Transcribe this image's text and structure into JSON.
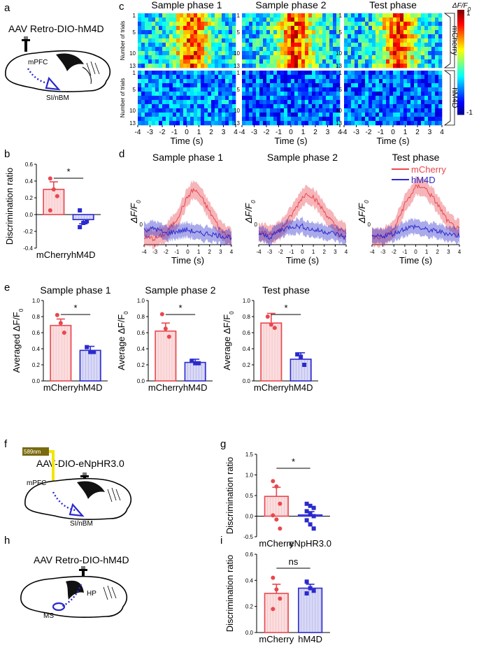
{
  "panels": {
    "a": "a",
    "b": "b",
    "c": "c",
    "d": "d",
    "e": "e",
    "f": "f",
    "g": "g",
    "h": "h",
    "i": "i"
  },
  "brains": {
    "a": {
      "title": "AAV Retro-DIO-hM4D",
      "label_top": "mPFC",
      "label_bottom": "SI/nBM"
    },
    "f": {
      "title": "AAV-DIO-eNpHR3.0",
      "laser": "589nm",
      "label_top": "mPFC",
      "label_bottom": "SI/nBM"
    },
    "h": {
      "title": "AAV Retro-DIO-hM4D",
      "label_top": "HP",
      "label_bottom": "MS"
    }
  },
  "colors": {
    "mcherry": "#e8474f",
    "hm4d": "#2a2acd",
    "laser": "#f2e600"
  },
  "chart_data": [
    {
      "id": "c",
      "type": "heatmap",
      "titles": [
        "Sample phase 1",
        "Sample phase 2",
        "Test phase"
      ],
      "groups": [
        "mCherry",
        "hM4D"
      ],
      "ylabel": "Number of trials",
      "yticks": [
        "1",
        "5",
        "10",
        "13"
      ],
      "xticks": [
        "-4",
        "-3",
        "-2",
        "-1",
        "0",
        "1",
        "2",
        "3",
        "4"
      ],
      "xlabel": "Time (s)",
      "colorbar": {
        "label": "ΔF/F0",
        "max": "1",
        "min": "-1"
      }
    },
    {
      "id": "d",
      "type": "line",
      "titles": [
        "Sample phase 1",
        "Sample phase 2",
        "Test phase"
      ],
      "xlabel": "Time (s)",
      "ylabel": "ΔF/F0",
      "xticks": [
        "-4",
        "-3",
        "-2",
        "-1",
        "0",
        "1",
        "2",
        "3",
        "4"
      ],
      "xlim": [
        -4,
        4
      ],
      "series": [
        {
          "name": "mCherry",
          "x": [
            -4,
            -3,
            -2,
            -1,
            0,
            0.5,
            1,
            2,
            3,
            4
          ],
          "panels": [
            [
              0.0,
              -0.02,
              0.05,
              0.25,
              0.55,
              0.65,
              0.6,
              0.35,
              0.1,
              0.0
            ],
            [
              0.05,
              0.05,
              0.1,
              0.3,
              0.55,
              0.6,
              0.55,
              0.35,
              0.15,
              0.05
            ],
            [
              0.0,
              0.0,
              0.1,
              0.45,
              0.68,
              0.7,
              0.65,
              0.45,
              0.2,
              0.1
            ]
          ]
        },
        {
          "name": "hM4D",
          "x": [
            -4,
            -3,
            -2,
            -1,
            0,
            0.5,
            1,
            2,
            3,
            4
          ],
          "panels": [
            [
              0.1,
              0.12,
              0.05,
              0.08,
              0.1,
              0.08,
              0.05,
              0.05,
              0.02,
              0.0
            ],
            [
              0.05,
              0.0,
              0.1,
              0.15,
              0.15,
              0.12,
              0.1,
              0.08,
              0.05,
              0.0
            ],
            [
              0.0,
              0.02,
              0.05,
              0.12,
              0.15,
              0.12,
              0.1,
              0.08,
              0.05,
              0.02
            ]
          ]
        }
      ],
      "legend": [
        "mCherry",
        "hM4D"
      ]
    },
    {
      "id": "b",
      "type": "bar",
      "categories": [
        "mCherry",
        "hM4D"
      ],
      "values": [
        0.3,
        -0.06
      ],
      "errors": [
        0.09,
        0.05
      ],
      "points": [
        [
          0.43,
          0.3,
          0.22,
          0.05
        ],
        [
          0.05,
          -0.1,
          -0.08,
          -0.15
        ]
      ],
      "ylabel": "Discrimination ratio",
      "ylim": [
        -0.4,
        0.6
      ],
      "yticks": [
        "-0.4",
        "-0.2",
        "0.0",
        "0.2",
        "0.4",
        "0.6"
      ],
      "sig": "*"
    },
    {
      "id": "e1",
      "type": "bar",
      "title": "Sample phase 1",
      "categories": [
        "mCherry",
        "hM4D"
      ],
      "values": [
        0.69,
        0.38
      ],
      "errors": [
        0.08,
        0.05
      ],
      "points": [
        [
          0.82,
          0.72,
          0.6
        ],
        [
          0.42,
          0.36,
          0.36
        ]
      ],
      "ylabel": "Averaged ΔF/F0",
      "ylim": [
        0,
        1.0
      ],
      "yticks": [
        "0.0",
        "0.2",
        "0.4",
        "0.6",
        "0.8",
        "1.0"
      ],
      "sig": "*"
    },
    {
      "id": "e2",
      "type": "bar",
      "title": "Sample phase 2",
      "categories": [
        "mCherry",
        "hM4D"
      ],
      "values": [
        0.62,
        0.23
      ],
      "errors": [
        0.1,
        0.04
      ],
      "points": [
        [
          0.83,
          0.65,
          0.55
        ],
        [
          0.25,
          0.22,
          0.22
        ]
      ],
      "ylabel": "Average ΔF/F0",
      "ylim": [
        0,
        1.0
      ],
      "yticks": [
        "0.0",
        "0.2",
        "0.4",
        "0.6",
        "0.8",
        "1.0"
      ],
      "sig": "*"
    },
    {
      "id": "e3",
      "type": "bar",
      "title": "Test phase",
      "categories": [
        "mCherry",
        "hM4D"
      ],
      "values": [
        0.72,
        0.27
      ],
      "errors": [
        0.12,
        0.08
      ],
      "points": [
        [
          0.8,
          0.7,
          0.66
        ],
        [
          0.33,
          0.3,
          0.2
        ]
      ],
      "ylabel": "Average ΔF/F0",
      "ylim": [
        0,
        1.0
      ],
      "yticks": [
        "0.0",
        "0.2",
        "0.4",
        "0.6",
        "0.8",
        "1.0"
      ],
      "sig": "*"
    },
    {
      "id": "g",
      "type": "bar",
      "categories": [
        "mCherry",
        "eNpHR3.0"
      ],
      "values": [
        0.48,
        0.03
      ],
      "errors": [
        0.22,
        0.08
      ],
      "points": [
        [
          0.85,
          0.72,
          0.3,
          0.02,
          -0.08,
          -0.3
        ],
        [
          0.3,
          0.25,
          0.2,
          0.12,
          0.05,
          0.0,
          -0.1,
          -0.2,
          -0.3
        ]
      ],
      "ylabel": "Discrimination ratio",
      "ylim": [
        -0.5,
        1.5
      ],
      "yticks": [
        "-0.5",
        "0.0",
        "0.5",
        "1.0",
        "1.5"
      ],
      "sig": "*"
    },
    {
      "id": "i",
      "type": "bar",
      "categories": [
        "mCherry",
        "hM4D"
      ],
      "values": [
        0.3,
        0.34
      ],
      "errors": [
        0.07,
        0.03
      ],
      "points": [
        [
          0.42,
          0.33,
          0.26,
          0.18
        ],
        [
          0.39,
          0.34,
          0.32,
          0.3
        ]
      ],
      "ylabel": "Discrimination ratio",
      "ylim": [
        0,
        0.6
      ],
      "yticks": [
        "0.0",
        "0.2",
        "0.4",
        "0.6"
      ],
      "sig": "ns"
    }
  ]
}
